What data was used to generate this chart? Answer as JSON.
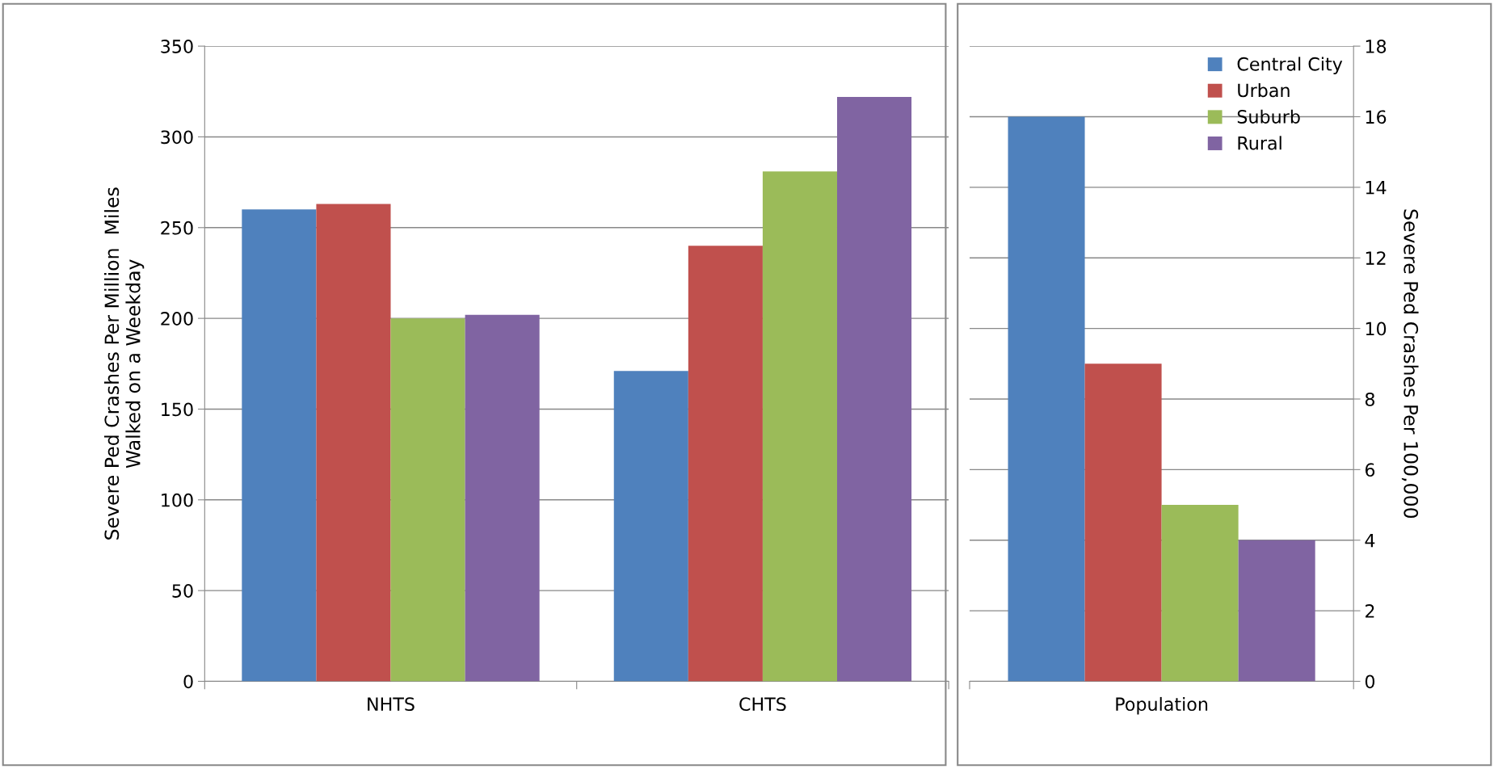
{
  "chart_data": [
    {
      "type": "bar",
      "ylabel": "Severe Ped Crashes Per Million  Miles\nWalked on a Weekday",
      "categories": [
        "NHTS",
        "CHTS"
      ],
      "ylim": [
        0,
        350
      ],
      "yticks": [
        0,
        50,
        100,
        150,
        200,
        250,
        300,
        350
      ],
      "grid": "y",
      "legend": false,
      "series": [
        {
          "color": "#4f81bd",
          "values": [
            260,
            171
          ]
        },
        {
          "color": "#c0504d",
          "values": [
            263,
            240
          ]
        },
        {
          "color": "#9bbb59",
          "values": [
            200,
            281
          ]
        },
        {
          "color": "#8064a2",
          "values": [
            202,
            322
          ]
        }
      ]
    },
    {
      "type": "bar",
      "ylabel": "Severe Ped Crashes Per 100,000",
      "categories": [
        "Population"
      ],
      "ylim": [
        0,
        18
      ],
      "yticks": [
        0,
        2,
        4,
        6,
        8,
        10,
        12,
        14,
        16,
        18
      ],
      "grid": "y",
      "legend": "top right",
      "series": [
        {
          "name": "Central City",
          "color": "#4f81bd",
          "values": [
            16
          ]
        },
        {
          "name": "Urban",
          "color": "#c0504d",
          "values": [
            9
          ]
        },
        {
          "name": "Suburb",
          "color": "#9bbb59",
          "values": [
            5
          ]
        },
        {
          "name": "Rural",
          "color": "#8064a2",
          "values": [
            4
          ]
        }
      ]
    }
  ]
}
